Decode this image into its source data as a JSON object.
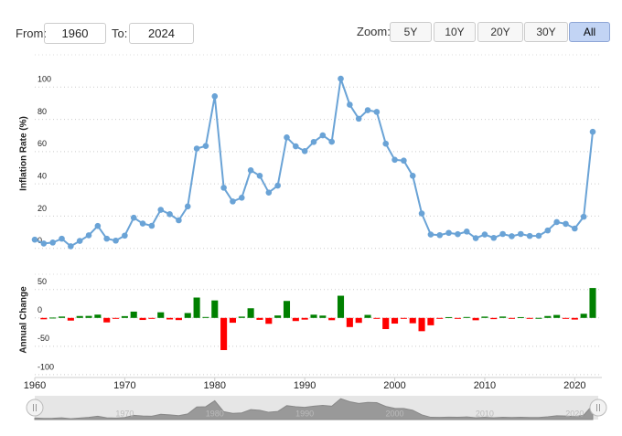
{
  "controls": {
    "from_label": "From:",
    "from": "1960",
    "to_label": "To:",
    "to": "2024",
    "zoom_label": "Zoom:",
    "zoom_buttons": [
      "5Y",
      "10Y",
      "20Y",
      "30Y",
      "All"
    ],
    "active_zoom": "All"
  },
  "chart_data": [
    {
      "type": "line",
      "y_label": "Inflation Rate (%)",
      "color": "#6aa3d6",
      "x": [
        1960,
        1961,
        1962,
        1963,
        1964,
        1965,
        1966,
        1967,
        1968,
        1969,
        1970,
        1971,
        1972,
        1973,
        1974,
        1975,
        1976,
        1977,
        1978,
        1979,
        1980,
        1981,
        1982,
        1983,
        1984,
        1985,
        1986,
        1987,
        1988,
        1989,
        1990,
        1991,
        1992,
        1993,
        1994,
        1995,
        1996,
        1997,
        1998,
        1999,
        2000,
        2001,
        2002,
        2003,
        2004,
        2005,
        2006,
        2007,
        2008,
        2009,
        2010,
        2011,
        2012,
        2013,
        2014,
        2015,
        2016,
        2017,
        2018,
        2019,
        2020,
        2021,
        2022
      ],
      "values": [
        5.4,
        3.0,
        3.6,
        6.0,
        1.3,
        4.6,
        8.1,
        13.9,
        6.0,
        4.8,
        7.9,
        19.0,
        15.4,
        14.0,
        23.9,
        21.2,
        17.4,
        26.0,
        61.9,
        63.5,
        94.3,
        37.6,
        29.1,
        31.4,
        48.4,
        45.0,
        34.6,
        38.9,
        68.8,
        63.3,
        60.3,
        66.0,
        70.1,
        66.1,
        105.2,
        89.1,
        80.4,
        85.7,
        84.6,
        64.9,
        54.9,
        54.4,
        45.0,
        21.6,
        8.6,
        8.2,
        9.6,
        8.8,
        10.4,
        6.3,
        8.6,
        6.5,
        8.9,
        7.5,
        8.9,
        7.7,
        7.8,
        11.1,
        16.3,
        15.2,
        12.3,
        19.6,
        72.3
      ],
      "xlim": [
        1960,
        2022
      ],
      "ylim": [
        -3,
        120
      ],
      "yticks": [
        0,
        20,
        40,
        60,
        80,
        100
      ],
      "grid": true
    },
    {
      "type": "bar",
      "y_label": "Annual Change",
      "positive_color": "#008000",
      "negative_color": "#ff0000",
      "x": [
        1960,
        1961,
        1962,
        1963,
        1964,
        1965,
        1966,
        1967,
        1968,
        1969,
        1970,
        1971,
        1972,
        1973,
        1974,
        1975,
        1976,
        1977,
        1978,
        1979,
        1980,
        1981,
        1982,
        1983,
        1984,
        1985,
        1986,
        1987,
        1988,
        1989,
        1990,
        1991,
        1992,
        1993,
        1994,
        1995,
        1996,
        1997,
        1998,
        1999,
        2000,
        2001,
        2002,
        2003,
        2004,
        2005,
        2006,
        2007,
        2008,
        2009,
        2010,
        2011,
        2012,
        2013,
        2014,
        2015,
        2016,
        2017,
        2018,
        2019,
        2020,
        2021,
        2022
      ],
      "values": [
        null,
        -2.4,
        0.6,
        2.4,
        -4.7,
        3.3,
        3.5,
        5.8,
        -7.9,
        -1.2,
        3.1,
        11.1,
        -3.6,
        -1.4,
        9.9,
        -2.7,
        -3.8,
        8.6,
        35.9,
        1.6,
        30.8,
        -56.7,
        -8.5,
        2.3,
        17.0,
        -3.4,
        -10.4,
        4.3,
        29.9,
        -5.5,
        -3.0,
        5.7,
        4.1,
        -4.0,
        39.1,
        -16.1,
        -8.7,
        5.3,
        -1.1,
        -19.7,
        -10.0,
        -0.5,
        -9.4,
        -23.4,
        -13.0,
        -0.4,
        1.4,
        -0.8,
        1.6,
        -4.1,
        2.3,
        -2.1,
        2.4,
        -1.4,
        1.4,
        -1.2,
        0.1,
        3.3,
        5.2,
        -1.1,
        -2.9,
        7.3,
        52.7
      ],
      "xlim": [
        1960,
        2022
      ],
      "ylim": [
        -105,
        77
      ],
      "yticks": [
        -100,
        -50,
        0,
        50
      ],
      "xticks": [
        1960,
        1970,
        1980,
        1990,
        2000,
        2010,
        2020
      ],
      "grid": true
    }
  ]
}
